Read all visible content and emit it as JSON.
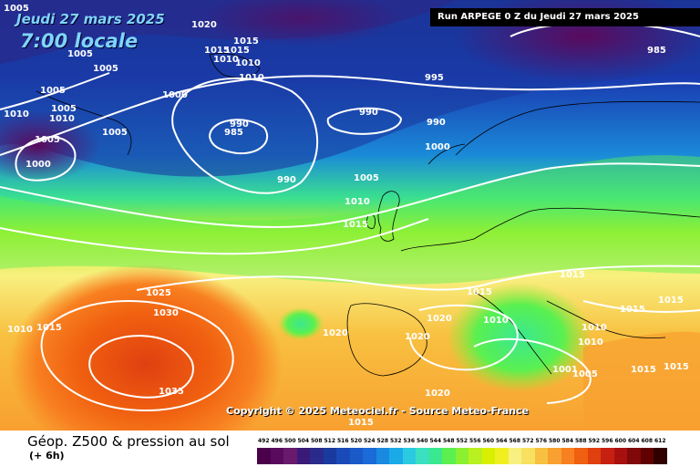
{
  "header": {
    "date": "Jeudi 27 mars 2025",
    "time": "7:00 locale",
    "run": "Run ARPEGE 0 Z du Jeudi 27 mars 2025"
  },
  "copyright": "Copyright © 2025 Meteociel.fr - Source Meteo-France",
  "footer": {
    "title": "Géop. Z500 & pression au sol",
    "subtitle": "(+ 6h)"
  },
  "legend": {
    "values": [
      "492",
      "496",
      "500",
      "504",
      "508",
      "512",
      "516",
      "520",
      "524",
      "528",
      "532",
      "536",
      "540",
      "544",
      "548",
      "552",
      "556",
      "560",
      "564",
      "568",
      "572",
      "576",
      "580",
      "584",
      "588",
      "592",
      "596",
      "600",
      "604",
      "608",
      "612"
    ],
    "colors": [
      "#4a004a",
      "#5a0a5c",
      "#6a1a6c",
      "#3a1a78",
      "#2a2a8a",
      "#1a3aa0",
      "#1a4ab8",
      "#1a5ac8",
      "#1a6ad8",
      "#1a8ae0",
      "#1aaae8",
      "#2acae0",
      "#3ae0c0",
      "#3ae890",
      "#5af050",
      "#8af030",
      "#b8f020",
      "#d8f000",
      "#f0f020",
      "#f8f080",
      "#f8e060",
      "#f8c040",
      "#f8a030",
      "#f88020",
      "#f06010",
      "#e04010",
      "#c82010",
      "#a81010",
      "#800808",
      "#600000",
      "#300000"
    ]
  },
  "isobars": [
    "1010",
    "1005",
    "1005",
    "1020",
    "1015",
    "1015",
    "1010",
    "1010",
    "1015",
    "1010",
    "1005",
    "1005",
    "1010",
    "1005",
    "1005",
    "1000",
    "1005",
    "1000",
    "990",
    "985",
    "995",
    "990",
    "985",
    "990",
    "1000",
    "1005",
    "990",
    "1010",
    "1015",
    "1025",
    "1030",
    "1035",
    "1015",
    "1010",
    "1020",
    "1020",
    "1020",
    "1015",
    "1010",
    "1015",
    "1015",
    "1010",
    "1010",
    "1005",
    "1001",
    "1015",
    "1015",
    "1015",
    "1020",
    "1015"
  ]
}
